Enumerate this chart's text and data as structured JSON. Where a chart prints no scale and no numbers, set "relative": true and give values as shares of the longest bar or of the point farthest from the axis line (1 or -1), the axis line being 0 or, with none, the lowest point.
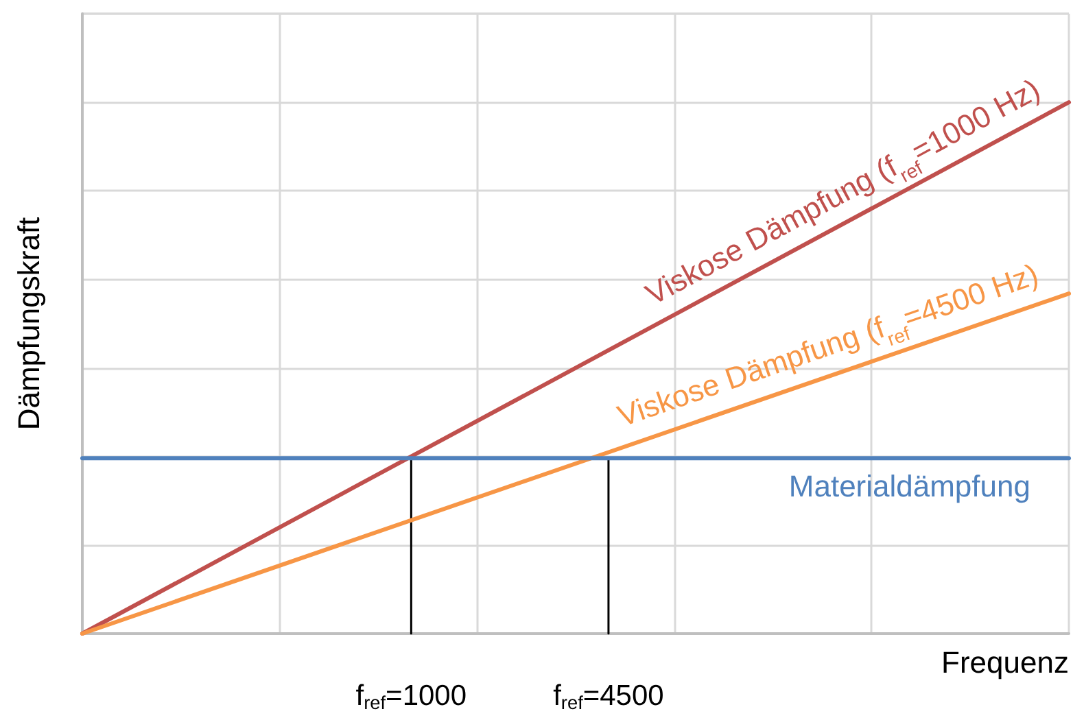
{
  "chart_data": {
    "type": "line",
    "relative": true,
    "xlabel": "Frequenz",
    "ylabel": "Dämpfungskraft",
    "categories": [
      null,
      null,
      null,
      null,
      null,
      "f$_{ref}$=1000",
      null,
      null,
      "f$_{ref}$=4500",
      null,
      null,
      null,
      null,
      null,
      null,
      null
    ],
    "grid": true,
    "legend": false,
    "marker": "none",
    "line_style": "solid",
    "series": [
      {
        "name": "Viskose Dämpfung (f$_{ref}$=1000 Hz)",
        "color": "#c0504d",
        "values": [
          0,
          null,
          null,
          null,
          null,
          null,
          null,
          null,
          null,
          null,
          null,
          null,
          null,
          null,
          null,
          1
        ]
      },
      {
        "name": "Viskose Dämpfung (f$_{ref}$=4500 Hz)",
        "color": "#f79646",
        "values": [
          0,
          null,
          null,
          null,
          null,
          null,
          null,
          null,
          null,
          null,
          null,
          null,
          null,
          null,
          null,
          0.64
        ]
      },
      {
        "name": "Materialdämpfung",
        "color": "#4f81bd",
        "values": [
          0.33,
          null,
          null,
          null,
          null,
          null,
          null,
          null,
          null,
          null,
          null,
          null,
          null,
          null,
          null,
          0.33
        ]
      },
      {
        "color": "#000000",
        "x": [
          "f$_{ref}$=1000",
          "f$_{ref}$=1000"
        ],
        "values": [
          0,
          0.33
        ]
      },
      {
        "color": "#000000",
        "x": [
          "f$_{ref}$=4500",
          "f$_{ref}$=4500"
        ],
        "values": [
          0,
          0.33
        ]
      }
    ]
  }
}
